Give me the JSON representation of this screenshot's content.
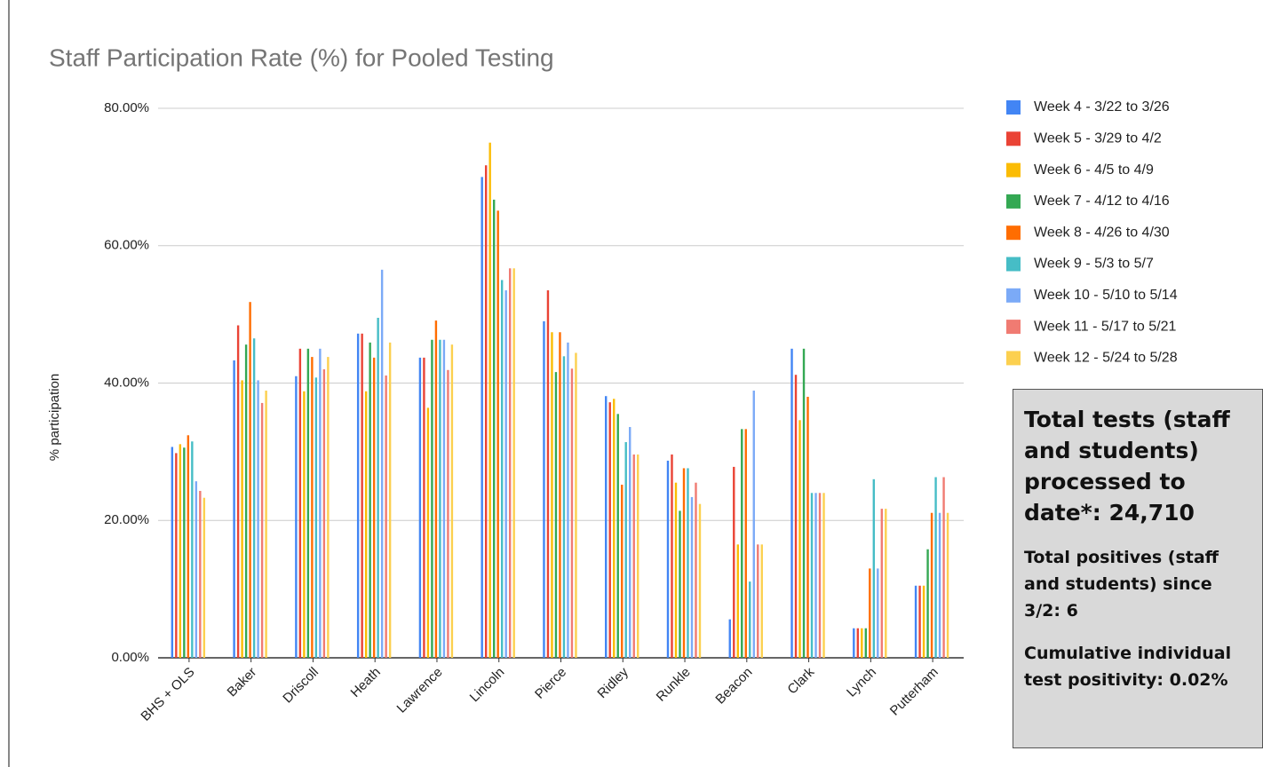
{
  "chart_data": {
    "type": "bar",
    "title": "Staff Participation Rate (%) for Pooled Testing",
    "y_label": "% participation",
    "categories": [
      "BHS + OLS",
      "Baker",
      "Driscoll",
      "Heath",
      "Lawrence",
      "Lincoln",
      "Pierce",
      "Ridley",
      "Runkle",
      "Beacon",
      "Clark",
      "Lynch",
      "Putterham"
    ],
    "series": [
      {
        "name": "Week 4 - 3/22 to 3/26",
        "color": "#4285f4",
        "values": [
          30.7,
          43.3,
          41,
          47.2,
          43.7,
          70,
          49,
          38.1,
          28.7,
          5.6,
          45,
          4.3,
          10.5
        ]
      },
      {
        "name": "Week 5 - 3/29 to 4/2",
        "color": "#ea4335",
        "values": [
          29.8,
          48.4,
          45,
          47.2,
          43.7,
          71.7,
          53.5,
          37.2,
          29.6,
          27.8,
          41.2,
          4.3,
          10.5
        ]
      },
      {
        "name": "Week 6 - 4/5 to 4/9",
        "color": "#fbbc04",
        "values": [
          31.1,
          40.4,
          38.8,
          38.8,
          36.4,
          75,
          47.4,
          37.7,
          25.5,
          16.5,
          34.6,
          4.3,
          10.5
        ]
      },
      {
        "name": "Week 7 - 4/12 to 4/16",
        "color": "#34a853",
        "values": [
          30.6,
          45.6,
          45,
          45.9,
          46.3,
          66.7,
          41.6,
          35.5,
          21.4,
          33.3,
          45,
          4.3,
          15.8
        ]
      },
      {
        "name": "Week 8 - 4/26 to 4/30",
        "color": "#ff6d01",
        "values": [
          32.4,
          51.8,
          43.8,
          43.7,
          49.1,
          65.1,
          47.4,
          25.2,
          27.6,
          33.3,
          38,
          13,
          21.1
        ]
      },
      {
        "name": "Week 9 - 5/3 to 5/7",
        "color": "#46bdc6",
        "values": [
          31.5,
          46.5,
          40.8,
          49.5,
          46.3,
          55,
          43.9,
          31.4,
          27.6,
          11.1,
          24,
          26,
          26.3
        ]
      },
      {
        "name": "Week 10 - 5/10 to 5/14",
        "color": "#7baaf7",
        "values": [
          25.7,
          40.4,
          45,
          56.5,
          46.3,
          53.5,
          45.9,
          33.6,
          23.4,
          38.9,
          24,
          13,
          21.1
        ]
      },
      {
        "name": "Week 11 - 5/17 to 5/21",
        "color": "#f07b72",
        "values": [
          24.3,
          37.1,
          42,
          41.1,
          41.9,
          56.7,
          42.1,
          29.6,
          25.5,
          16.5,
          24,
          21.7,
          26.3
        ]
      },
      {
        "name": "Week 12 - 5/24 to 5/28",
        "color": "#fcd04f",
        "values": [
          23.3,
          38.9,
          43.8,
          45.9,
          45.6,
          56.7,
          44.4,
          29.6,
          22.4,
          16.5,
          24,
          21.7,
          21.1
        ]
      }
    ],
    "ylim": [
      0,
      80
    ],
    "yticks": [
      {
        "value": 0,
        "label": "0.00%"
      },
      {
        "value": 20,
        "label": "20.00%"
      },
      {
        "value": 40,
        "label": "40.00%"
      },
      {
        "value": 60,
        "label": "60.00%"
      },
      {
        "value": 80,
        "label": "80.00%"
      }
    ],
    "grid": true,
    "legend": "right",
    "annotations": [
      "Total tests (staff and students) processed to date*: 24,710",
      "Total positives (staff and students) since 3/2: 6",
      "Cumulative individual test positivity: 0.02%"
    ]
  }
}
